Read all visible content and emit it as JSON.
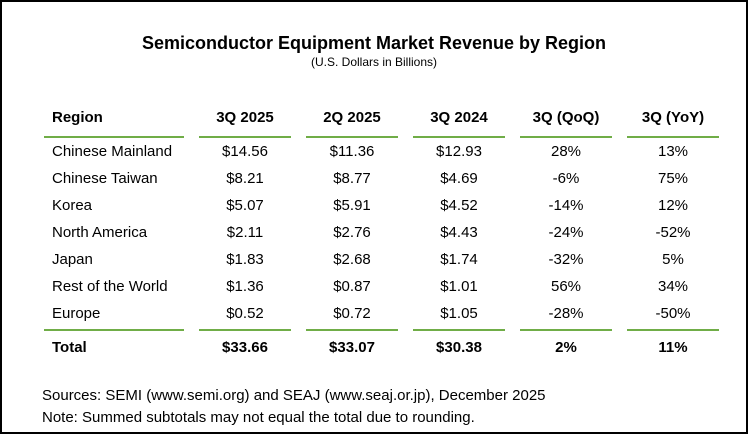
{
  "page": {
    "title": "Semiconductor Equipment Market Revenue by Region",
    "subtitle": "(U.S. Dollars in Billions)"
  },
  "table": {
    "columns": [
      "Region",
      "3Q 2025",
      "2Q 2025",
      "3Q 2024",
      "3Q (QoQ)",
      "3Q (YoY)"
    ],
    "rows": [
      [
        "Chinese Mainland",
        "$14.56",
        "$11.36",
        "$12.93",
        "28%",
        "13%"
      ],
      [
        "Chinese Taiwan",
        "$8.21",
        "$8.77",
        "$4.69",
        "-6%",
        "75%"
      ],
      [
        "Korea",
        "$5.07",
        "$5.91",
        "$4.52",
        "-14%",
        "12%"
      ],
      [
        "North America",
        "$2.11",
        "$2.76",
        "$4.43",
        "-24%",
        "-52%"
      ],
      [
        "Japan",
        "$1.83",
        "$2.68",
        "$1.74",
        "-32%",
        "5%"
      ],
      [
        "Rest of the World",
        "$1.36",
        "$0.87",
        "$1.01",
        "56%",
        "34%"
      ],
      [
        "Europe",
        "$0.52",
        "$0.72",
        "$1.05",
        "-28%",
        "-50%"
      ]
    ],
    "total_row": [
      "Total",
      "$33.66",
      "$33.07",
      "$30.38",
      "2%",
      "11%"
    ]
  },
  "footer": {
    "sources": "Sources: SEMI (www.semi.org) and SEAJ (www.seaj.or.jp), December 2025",
    "note": "Note: Summed subtotals may not equal the total due to rounding."
  },
  "colors": {
    "accent_line": "#70AD47",
    "text": "#000000",
    "background": "#ffffff",
    "outer_border": "#000000"
  }
}
